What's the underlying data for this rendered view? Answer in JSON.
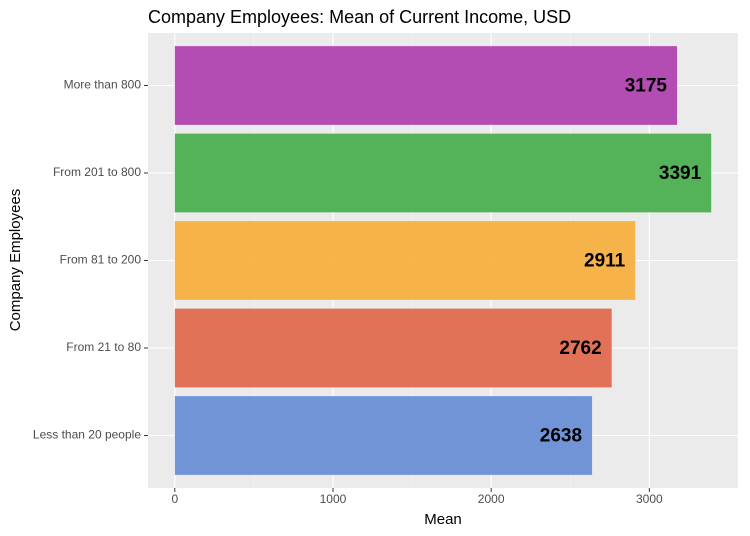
{
  "chart_data": {
    "type": "bar",
    "orientation": "horizontal",
    "title": "Company Employees: Mean of Current Income, USD",
    "x_label": "Mean",
    "y_label": "Company Employees",
    "categories": [
      "Less than 20 people",
      "From 21 to 80",
      "From 81 to 200",
      "From 201 to 800",
      "More than 800"
    ],
    "values": [
      2638,
      2762,
      2911,
      3391,
      3175
    ],
    "colors": [
      "#6a8fd6",
      "#e06b50",
      "#f7b041",
      "#4caf50",
      "#b044b0"
    ],
    "xlim": [
      -169.55,
      3560.55
    ],
    "xticks": [
      0,
      1000,
      2000,
      3000
    ],
    "grid": true
  }
}
